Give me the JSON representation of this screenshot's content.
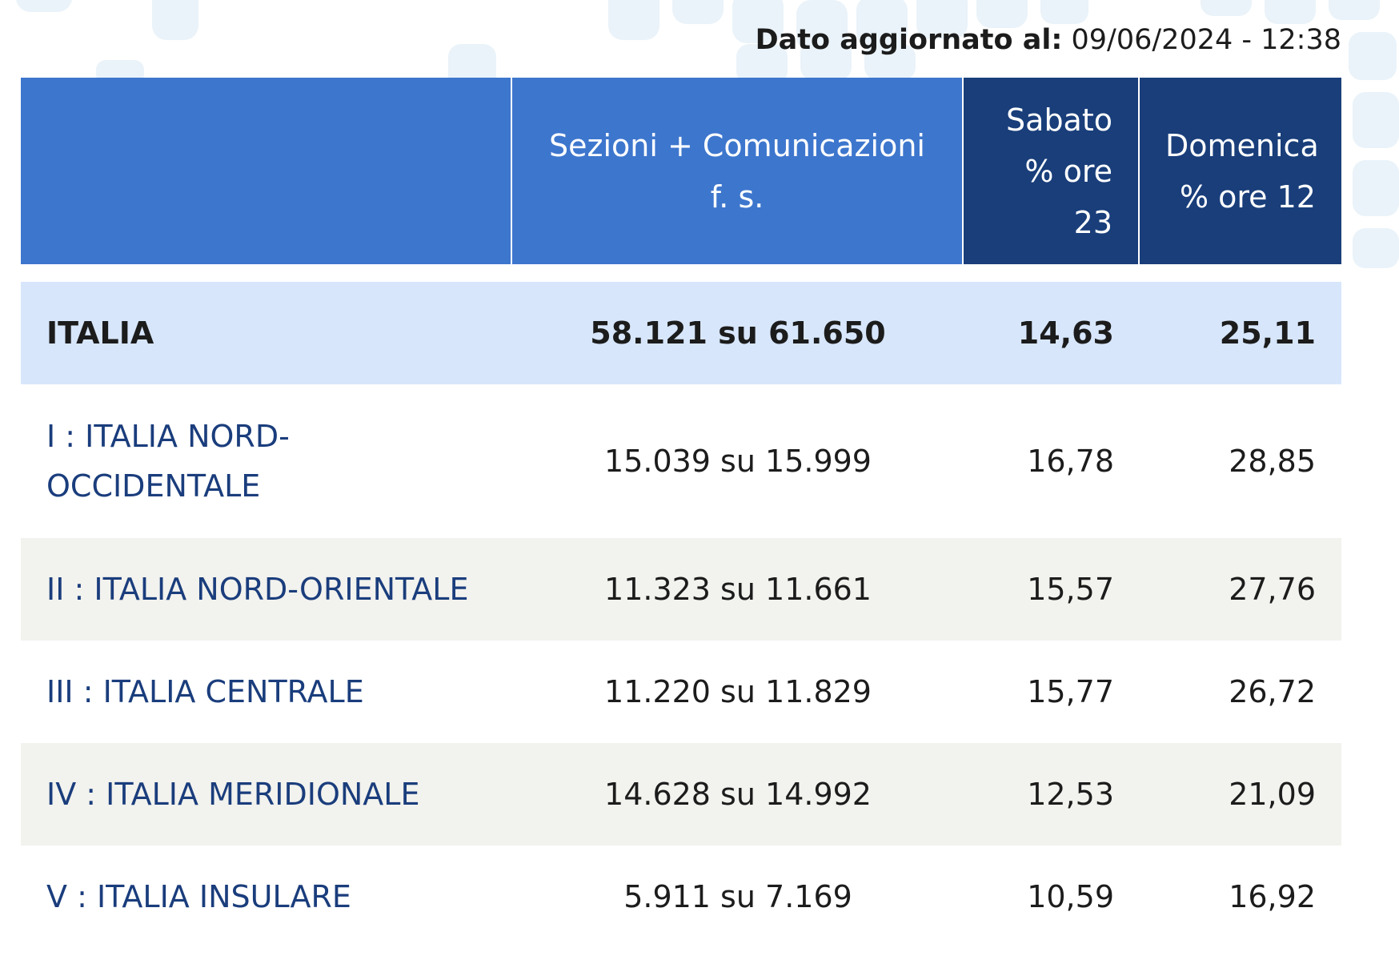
{
  "update": {
    "label": "Dato aggiornato al:",
    "value": "09/06/2024 - 12:38"
  },
  "table": {
    "headers": {
      "area": "",
      "sezioni": "Sezioni + Comunicazioni f. s.",
      "sabato_line1": "Sabato",
      "sabato_line2": "% ore",
      "sabato_line3": "23",
      "domenica_line1": "Domenica",
      "domenica_line2": "% ore 12"
    },
    "total": {
      "name": "ITALIA",
      "sezioni": "58.121 su 61.650",
      "sabato": "14,63",
      "domenica": "25,11"
    },
    "rows": [
      {
        "name_line1": "I : ITALIA NORD-",
        "name_line2": "OCCIDENTALE",
        "sezioni": "15.039 su 15.999",
        "sabato": "16,78",
        "domenica": "28,85"
      },
      {
        "name": "II : ITALIA NORD-ORIENTALE",
        "sezioni": "11.323 su 11.661",
        "sabato": "15,57",
        "domenica": "27,76"
      },
      {
        "name": "III : ITALIA CENTRALE",
        "sezioni": "11.220 su 11.829",
        "sabato": "15,77",
        "domenica": "26,72"
      },
      {
        "name": "IV : ITALIA MERIDIONALE",
        "sezioni": "14.628 su 14.992",
        "sabato": "12,53",
        "domenica": "21,09"
      },
      {
        "name": "V : ITALIA INSULARE",
        "sezioni": "5.911 su 7.169",
        "sabato": "10,59",
        "domenica": "16,92"
      }
    ]
  },
  "colors": {
    "header_blue": "#3d76cd",
    "header_navy": "#193e7a",
    "total_row_bg": "#d7e6fb",
    "shaded_row_bg": "#f2f2ee",
    "area_name_text": "#1a3d7c"
  }
}
